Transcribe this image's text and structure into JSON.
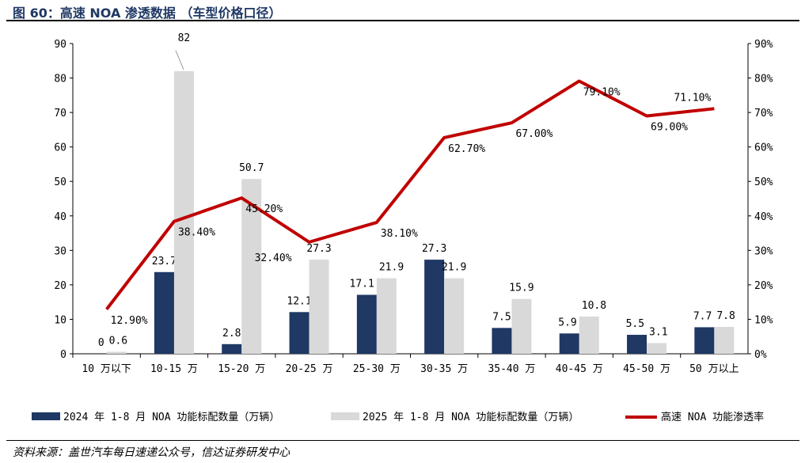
{
  "title": "图 60：高速 NOA 渗透数据 （车型价格口径）",
  "source": "资料来源：盖世汽车每日速递公众号，信达证券研发中心",
  "chart_data": {
    "type": "bar+line",
    "title": "高速 NOA 渗透数据 （车型价格口径）",
    "categories": [
      "10 万以下",
      "10-15 万",
      "15-20 万",
      "20-25 万",
      "25-30 万",
      "30-35 万",
      "35-40 万",
      "40-45 万",
      "45-50 万",
      "50 万以上"
    ],
    "series": [
      {
        "name": "2024 年 1-8 月 NOA 功能标配数量（万辆）",
        "type": "bar",
        "axis": "left",
        "color": "#1f3864",
        "values": [
          0,
          23.7,
          2.8,
          12.1,
          17.1,
          27.3,
          7.5,
          5.9,
          5.5,
          7.7
        ],
        "labels": [
          "0",
          "23.7",
          "2.8",
          "12.1",
          "17.1",
          "27.3",
          "7.5",
          "5.9",
          "5.5",
          "7.7"
        ]
      },
      {
        "name": "2025 年 1-8 月 NOA 功能标配数量（万辆）",
        "type": "bar",
        "axis": "left",
        "color": "#d9d9d9",
        "values": [
          0.6,
          82,
          50.7,
          27.3,
          21.9,
          21.9,
          15.9,
          10.8,
          3.1,
          7.8
        ],
        "labels": [
          "0.6",
          "82",
          "50.7",
          "27.3",
          "21.9",
          "21.9",
          "15.9",
          "10.8",
          "3.1",
          "7.8"
        ]
      },
      {
        "name": "高速 NOA 功能渗透率",
        "type": "line",
        "axis": "right",
        "color": "#c00000",
        "values": [
          12.9,
          38.4,
          45.2,
          32.4,
          38.1,
          62.7,
          67.0,
          79.1,
          69.0,
          71.1
        ],
        "labels": [
          "12.90%",
          "38.40%",
          "45.20%",
          "32.40%",
          "38.10%",
          "62.70%",
          "67.00%",
          "79.10%",
          "69.00%",
          "71.10%"
        ]
      }
    ],
    "ylim": [
      0,
      90
    ],
    "yticks": [
      "0",
      "10",
      "20",
      "30",
      "40",
      "50",
      "60",
      "70",
      "80",
      "90"
    ],
    "y2lim": [
      0,
      90
    ],
    "y2ticks": [
      "0%",
      "10%",
      "20%",
      "30%",
      "40%",
      "50%",
      "60%",
      "70%",
      "80%",
      "90%"
    ],
    "legend": "bottom",
    "grid": false
  }
}
